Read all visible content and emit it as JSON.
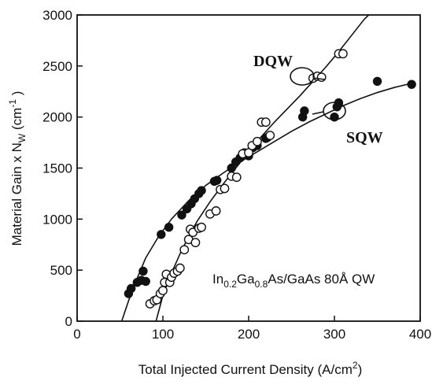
{
  "chart_data": {
    "type": "scatter",
    "xlabel_main": "Total Injected Current Density (A/cm",
    "xlabel_sup": "2",
    "xlabel_tail": ")",
    "ylabel_main": "Material Gain x N",
    "ylabel_sub": "W",
    "ylabel_unit": " (cm",
    "ylabel_sup": "-1",
    "ylabel_tail": " )",
    "xlim": [
      0,
      400
    ],
    "ylim": [
      0,
      3000
    ],
    "xticks": [
      "0",
      "100",
      "200",
      "300",
      "400"
    ],
    "yticks": [
      "0",
      "500",
      "1000",
      "1500",
      "2000",
      "2500",
      "3000"
    ],
    "annotation_base": "In",
    "annotation_sub1": "0.2",
    "annotation_mid": "Ga",
    "annotation_sub2": "0.8",
    "annotation_tail": "As/GaAs 80Å QW",
    "series": [
      {
        "name": "SQW",
        "marker": "filled-circle",
        "points": [
          [
            60,
            270
          ],
          [
            63,
            320
          ],
          [
            70,
            380
          ],
          [
            75,
            400
          ],
          [
            77,
            490
          ],
          [
            80,
            390
          ],
          [
            98,
            850
          ],
          [
            107,
            920
          ],
          [
            122,
            1040
          ],
          [
            128,
            1100
          ],
          [
            133,
            1150
          ],
          [
            137,
            1200
          ],
          [
            142,
            1250
          ],
          [
            145,
            1280
          ],
          [
            160,
            1370
          ],
          [
            163,
            1380
          ],
          [
            180,
            1500
          ],
          [
            185,
            1560
          ],
          [
            190,
            1600
          ],
          [
            195,
            1650
          ],
          [
            200,
            1620
          ],
          [
            205,
            1700
          ],
          [
            210,
            1720
          ],
          [
            220,
            1790
          ],
          [
            222,
            1800
          ],
          [
            263,
            2000
          ],
          [
            265,
            2060
          ],
          [
            300,
            2000
          ],
          [
            303,
            2100
          ],
          [
            305,
            2140
          ],
          [
            350,
            2350
          ],
          [
            390,
            2320
          ]
        ],
        "curve": [
          [
            52,
            0
          ],
          [
            60,
            200
          ],
          [
            70,
            420
          ],
          [
            80,
            620
          ],
          [
            95,
            830
          ],
          [
            110,
            1000
          ],
          [
            130,
            1180
          ],
          [
            150,
            1330
          ],
          [
            170,
            1450
          ],
          [
            190,
            1560
          ],
          [
            210,
            1660
          ],
          [
            230,
            1760
          ],
          [
            250,
            1860
          ],
          [
            270,
            1950
          ],
          [
            290,
            2030
          ],
          [
            310,
            2110
          ],
          [
            330,
            2180
          ],
          [
            350,
            2240
          ],
          [
            370,
            2290
          ],
          [
            390,
            2330
          ]
        ]
      },
      {
        "name": "DQW",
        "marker": "open-circle",
        "points": [
          [
            85,
            170
          ],
          [
            90,
            200
          ],
          [
            93,
            210
          ],
          [
            97,
            270
          ],
          [
            100,
            300
          ],
          [
            102,
            380
          ],
          [
            104,
            460
          ],
          [
            108,
            380
          ],
          [
            110,
            430
          ],
          [
            113,
            470
          ],
          [
            117,
            490
          ],
          [
            120,
            520
          ],
          [
            125,
            700
          ],
          [
            130,
            800
          ],
          [
            132,
            900
          ],
          [
            135,
            870
          ],
          [
            138,
            770
          ],
          [
            142,
            910
          ],
          [
            145,
            920
          ],
          [
            155,
            1050
          ],
          [
            162,
            1080
          ],
          [
            167,
            1290
          ],
          [
            172,
            1300
          ],
          [
            180,
            1420
          ],
          [
            186,
            1410
          ],
          [
            193,
            1640
          ],
          [
            200,
            1650
          ],
          [
            204,
            1720
          ],
          [
            210,
            1760
          ],
          [
            215,
            1950
          ],
          [
            220,
            1950
          ],
          [
            225,
            1820
          ],
          [
            275,
            2380
          ],
          [
            280,
            2400
          ],
          [
            285,
            2390
          ],
          [
            305,
            2620
          ],
          [
            310,
            2620
          ]
        ],
        "curve": [
          [
            92,
            0
          ],
          [
            100,
            250
          ],
          [
            110,
            470
          ],
          [
            120,
            660
          ],
          [
            130,
            830
          ],
          [
            140,
            980
          ],
          [
            155,
            1170
          ],
          [
            170,
            1340
          ],
          [
            185,
            1500
          ],
          [
            200,
            1660
          ],
          [
            215,
            1810
          ],
          [
            230,
            1950
          ],
          [
            245,
            2080
          ],
          [
            260,
            2210
          ],
          [
            275,
            2350
          ],
          [
            290,
            2490
          ],
          [
            305,
            2640
          ],
          [
            320,
            2800
          ],
          [
            335,
            2960
          ],
          [
            340,
            3000
          ]
        ]
      }
    ]
  }
}
